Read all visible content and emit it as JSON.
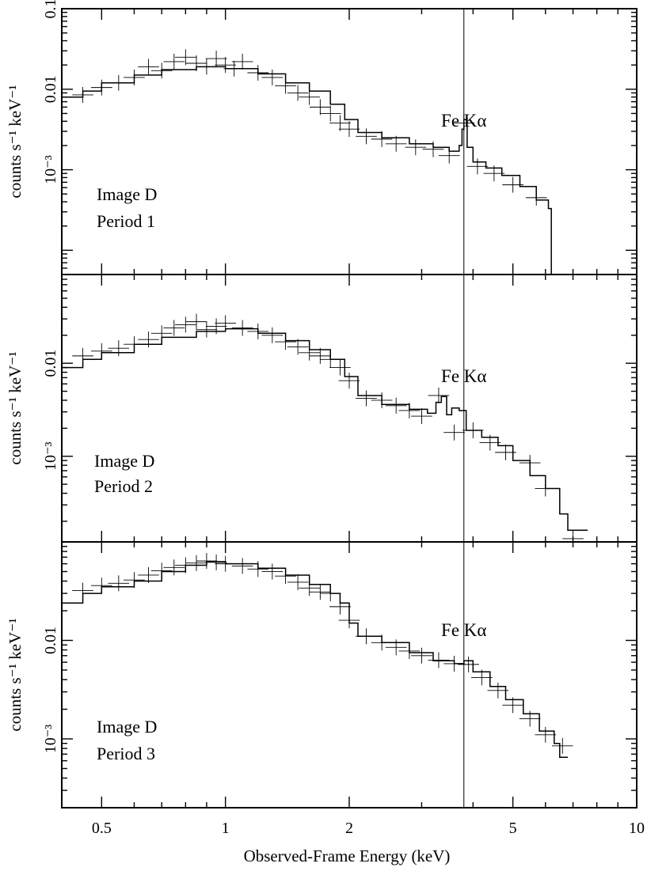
{
  "chart_data": {
    "type": "line",
    "x_scale": "log",
    "y_scale": "log",
    "xlabel": "Observed-Frame Energy (keV)",
    "xlim": [
      0.4,
      10
    ],
    "x_ticks": [
      {
        "value": 0.5,
        "label": "0.5"
      },
      {
        "value": 1,
        "label": "1"
      },
      {
        "value": 2,
        "label": "2"
      },
      {
        "value": 5,
        "label": "5"
      },
      {
        "value": 10,
        "label": "10"
      }
    ],
    "fe_line": {
      "energy": 3.8,
      "label": "Fe Kα"
    },
    "panels": [
      {
        "name": "Image D Period 1",
        "label_line1": "Image D",
        "label_line2": "Period 1",
        "ylabel": "counts s⁻¹ keV⁻¹",
        "ylim": [
          5e-05,
          0.1
        ],
        "y_tick_labels": [
          {
            "value": 0.1,
            "label": "0.1"
          },
          {
            "value": 0.01,
            "label": "0.01"
          },
          {
            "value": 0.001,
            "label": "10⁻³"
          }
        ],
        "model": [
          [
            0.4,
            0.008
          ],
          [
            0.45,
            0.0095
          ],
          [
            0.5,
            0.012
          ],
          [
            0.6,
            0.015
          ],
          [
            0.7,
            0.0175
          ],
          [
            0.85,
            0.019
          ],
          [
            1.0,
            0.018
          ],
          [
            1.2,
            0.0155
          ],
          [
            1.4,
            0.012
          ],
          [
            1.6,
            0.0095
          ],
          [
            1.8,
            0.0065
          ],
          [
            1.95,
            0.0042
          ],
          [
            2.1,
            0.0029
          ],
          [
            2.4,
            0.0025
          ],
          [
            2.8,
            0.0021
          ],
          [
            3.2,
            0.0019
          ],
          [
            3.5,
            0.0017
          ],
          [
            3.7,
            0.002
          ],
          [
            3.76,
            0.0032
          ],
          [
            3.8,
            0.0042
          ],
          [
            3.87,
            0.0019
          ],
          [
            4.0,
            0.00125
          ],
          [
            4.3,
            0.00105
          ],
          [
            4.7,
            0.00085
          ],
          [
            5.2,
            0.00062
          ],
          [
            5.7,
            0.00042
          ],
          [
            6.1,
            0.00033
          ],
          [
            6.2,
            5e-05
          ]
        ],
        "data": [
          [
            0.45,
            0.0085
          ],
          [
            0.5,
            0.0105
          ],
          [
            0.55,
            0.012
          ],
          [
            0.6,
            0.014
          ],
          [
            0.65,
            0.019
          ],
          [
            0.7,
            0.017
          ],
          [
            0.75,
            0.022
          ],
          [
            0.8,
            0.025
          ],
          [
            0.85,
            0.021
          ],
          [
            0.9,
            0.019
          ],
          [
            0.95,
            0.024
          ],
          [
            1.0,
            0.02
          ],
          [
            1.05,
            0.018
          ],
          [
            1.1,
            0.022
          ],
          [
            1.2,
            0.016
          ],
          [
            1.3,
            0.014
          ],
          [
            1.4,
            0.011
          ],
          [
            1.5,
            0.009
          ],
          [
            1.6,
            0.008
          ],
          [
            1.7,
            0.006
          ],
          [
            1.8,
            0.005
          ],
          [
            1.9,
            0.0038
          ],
          [
            2.0,
            0.0032
          ],
          [
            2.2,
            0.0026
          ],
          [
            2.4,
            0.0024
          ],
          [
            2.6,
            0.0021
          ],
          [
            2.9,
            0.0019
          ],
          [
            3.2,
            0.0018
          ],
          [
            3.5,
            0.0015
          ],
          [
            3.8,
            0.0038
          ],
          [
            4.1,
            0.0011
          ],
          [
            4.5,
            0.0009
          ],
          [
            5.0,
            0.00065
          ],
          [
            5.7,
            0.00045
          ]
        ]
      },
      {
        "name": "Image D Period 2",
        "label_line1": "Image D",
        "label_line2": "Period 2",
        "ylabel": "counts s⁻¹ keV⁻¹",
        "ylim": [
          0.00012,
          0.09
        ],
        "y_tick_labels": [
          {
            "value": 0.01,
            "label": "0.01"
          },
          {
            "value": 0.001,
            "label": "10⁻³"
          }
        ],
        "model": [
          [
            0.4,
            0.009
          ],
          [
            0.45,
            0.011
          ],
          [
            0.5,
            0.013
          ],
          [
            0.6,
            0.016
          ],
          [
            0.7,
            0.019
          ],
          [
            0.85,
            0.022
          ],
          [
            1.0,
            0.0235
          ],
          [
            1.2,
            0.021
          ],
          [
            1.4,
            0.0175
          ],
          [
            1.6,
            0.014
          ],
          [
            1.8,
            0.011
          ],
          [
            1.95,
            0.0072
          ],
          [
            2.1,
            0.0045
          ],
          [
            2.4,
            0.0036
          ],
          [
            2.8,
            0.0032
          ],
          [
            3.1,
            0.0029
          ],
          [
            3.25,
            0.0038
          ],
          [
            3.35,
            0.0044
          ],
          [
            3.45,
            0.0028
          ],
          [
            3.55,
            0.0033
          ],
          [
            3.7,
            0.0031
          ],
          [
            3.85,
            0.0019
          ],
          [
            4.2,
            0.0016
          ],
          [
            4.6,
            0.0013
          ],
          [
            5.0,
            0.0009
          ],
          [
            5.5,
            0.00062
          ],
          [
            6.0,
            0.00045
          ],
          [
            6.5,
            0.00024
          ],
          [
            6.8,
            0.00016
          ],
          [
            7.6,
            0.00016
          ]
        ],
        "data": [
          [
            0.45,
            0.012
          ],
          [
            0.5,
            0.0135
          ],
          [
            0.55,
            0.0145
          ],
          [
            0.6,
            0.016
          ],
          [
            0.65,
            0.018
          ],
          [
            0.7,
            0.021
          ],
          [
            0.75,
            0.024
          ],
          [
            0.8,
            0.026
          ],
          [
            0.85,
            0.028
          ],
          [
            0.9,
            0.023
          ],
          [
            0.95,
            0.025
          ],
          [
            1.0,
            0.027
          ],
          [
            1.1,
            0.024
          ],
          [
            1.2,
            0.022
          ],
          [
            1.3,
            0.02
          ],
          [
            1.4,
            0.017
          ],
          [
            1.5,
            0.015
          ],
          [
            1.6,
            0.013
          ],
          [
            1.7,
            0.012
          ],
          [
            1.8,
            0.011
          ],
          [
            1.9,
            0.009
          ],
          [
            2.0,
            0.0065
          ],
          [
            2.2,
            0.0042
          ],
          [
            2.4,
            0.004
          ],
          [
            2.6,
            0.0035
          ],
          [
            2.8,
            0.0031
          ],
          [
            3.0,
            0.0027
          ],
          [
            3.3,
            0.0045
          ],
          [
            3.6,
            0.0018
          ],
          [
            4.0,
            0.0019
          ],
          [
            4.4,
            0.0014
          ],
          [
            4.8,
            0.0011
          ],
          [
            5.5,
            0.00085
          ],
          [
            6.0,
            0.00045
          ],
          [
            7.0,
            0.00013
          ]
        ]
      },
      {
        "name": "Image D Period 3",
        "label_line1": "Image D",
        "label_line2": "Period 3",
        "ylabel": "counts s⁻¹ keV⁻¹",
        "ylim": [
          0.0002,
          0.1
        ],
        "y_tick_labels": [
          {
            "value": 0.01,
            "label": "0.01"
          },
          {
            "value": 0.001,
            "label": "10⁻³"
          }
        ],
        "model": [
          [
            0.4,
            0.024
          ],
          [
            0.45,
            0.03
          ],
          [
            0.5,
            0.035
          ],
          [
            0.6,
            0.04
          ],
          [
            0.7,
            0.05
          ],
          [
            0.8,
            0.058
          ],
          [
            0.9,
            0.063
          ],
          [
            1.0,
            0.06
          ],
          [
            1.2,
            0.054
          ],
          [
            1.4,
            0.046
          ],
          [
            1.6,
            0.037
          ],
          [
            1.8,
            0.03
          ],
          [
            1.9,
            0.024
          ],
          [
            2.0,
            0.015
          ],
          [
            2.1,
            0.011
          ],
          [
            2.4,
            0.0095
          ],
          [
            2.8,
            0.0075
          ],
          [
            3.2,
            0.0062
          ],
          [
            3.6,
            0.0058
          ],
          [
            3.8,
            0.0062
          ],
          [
            4.0,
            0.0048
          ],
          [
            4.4,
            0.0034
          ],
          [
            4.8,
            0.0025
          ],
          [
            5.3,
            0.0018
          ],
          [
            5.8,
            0.0012
          ],
          [
            6.3,
            0.0009
          ],
          [
            6.5,
            0.00065
          ],
          [
            6.8,
            0.00065
          ]
        ],
        "data": [
          [
            0.45,
            0.032
          ],
          [
            0.5,
            0.036
          ],
          [
            0.55,
            0.038
          ],
          [
            0.6,
            0.041
          ],
          [
            0.65,
            0.046
          ],
          [
            0.7,
            0.051
          ],
          [
            0.75,
            0.055
          ],
          [
            0.8,
            0.058
          ],
          [
            0.85,
            0.061
          ],
          [
            0.9,
            0.064
          ],
          [
            0.95,
            0.062
          ],
          [
            1.0,
            0.06
          ],
          [
            1.1,
            0.057
          ],
          [
            1.2,
            0.053
          ],
          [
            1.3,
            0.05
          ],
          [
            1.4,
            0.045
          ],
          [
            1.5,
            0.039
          ],
          [
            1.6,
            0.034
          ],
          [
            1.7,
            0.031
          ],
          [
            1.8,
            0.03
          ],
          [
            1.9,
            0.022
          ],
          [
            2.0,
            0.016
          ],
          [
            2.2,
            0.011
          ],
          [
            2.4,
            0.0095
          ],
          [
            2.6,
            0.0085
          ],
          [
            2.8,
            0.0078
          ],
          [
            3.0,
            0.007
          ],
          [
            3.3,
            0.0063
          ],
          [
            3.6,
            0.0058
          ],
          [
            3.9,
            0.0057
          ],
          [
            4.2,
            0.0042
          ],
          [
            4.6,
            0.0031
          ],
          [
            5.0,
            0.0022
          ],
          [
            5.5,
            0.0016
          ],
          [
            6.0,
            0.0011
          ],
          [
            6.6,
            0.00085
          ]
        ]
      }
    ]
  }
}
